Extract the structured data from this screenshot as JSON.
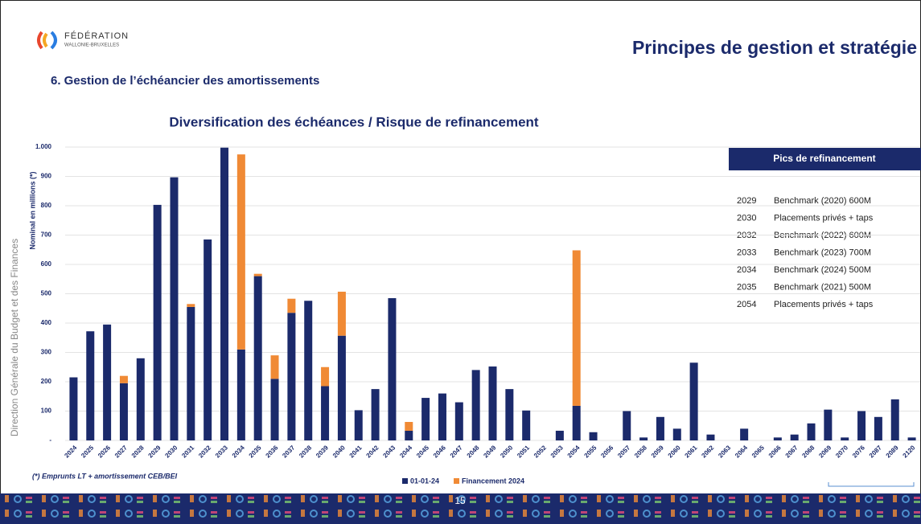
{
  "header": {
    "logo_line1": "FÉDÉRATION",
    "logo_line2": "WALLONIE-BRUXELLES",
    "title": "Principes de gestion et stratégie",
    "subtitle": "6. Gestion de l’échéancier des amortissements"
  },
  "sidebar": "Direction Générale du Budget et des Finances",
  "chart_data": {
    "type": "stacked_bar",
    "title": "Diversification des échéances / Risque de refinancement",
    "y_label": "Nominal en millions (*)",
    "categories": [
      "2024",
      "2025",
      "2026",
      "2027",
      "2028",
      "2029",
      "2030",
      "2031",
      "2032",
      "2033",
      "2034",
      "2035",
      "2036",
      "2037",
      "2038",
      "2039",
      "2040",
      "2041",
      "2042",
      "2043",
      "2044",
      "2045",
      "2046",
      "2047",
      "2048",
      "2049",
      "2050",
      "2051",
      "2052",
      "2053",
      "2054",
      "2055",
      "2056",
      "2057",
      "2058",
      "2059",
      "2060",
      "2061",
      "2062",
      "2063",
      "2064",
      "2065",
      "2066",
      "2067",
      "2068",
      "2069",
      "2070",
      "2076",
      "2087",
      "2089",
      "2120"
    ],
    "series": [
      {
        "name": "01-01-24",
        "color": "#1b2a6b",
        "values": [
          215,
          372,
          395,
          195,
          280,
          803,
          897,
          455,
          685,
          998,
          310,
          560,
          210,
          435,
          476,
          185,
          357,
          103,
          175,
          485,
          33,
          145,
          160,
          130,
          240,
          252,
          175,
          102,
          0,
          33,
          118,
          28,
          0,
          100,
          10,
          80,
          40,
          265,
          20,
          0,
          40,
          0,
          10,
          20,
          58,
          105,
          10,
          100,
          80,
          140,
          10
        ]
      },
      {
        "name": "Financement 2024",
        "color": "#f08a35",
        "values": [
          0,
          0,
          0,
          25,
          0,
          0,
          0,
          10,
          0,
          0,
          665,
          8,
          80,
          48,
          0,
          65,
          150,
          0,
          0,
          0,
          30,
          0,
          0,
          0,
          0,
          0,
          0,
          0,
          0,
          0,
          530,
          0,
          0,
          0,
          0,
          0,
          0,
          0,
          0,
          0,
          0,
          0,
          0,
          0,
          0,
          0,
          0,
          0,
          0,
          0,
          0
        ]
      }
    ],
    "ylim": [
      0,
      1000
    ],
    "yticks": [
      {
        "value": 0,
        "label": "-"
      },
      100,
      200,
      300,
      400,
      500,
      600,
      700,
      800,
      900,
      {
        "value": 1000,
        "label": "1.000"
      }
    ],
    "grid": true,
    "footnote": "(*) Emprunts LT +  amortissement CEB/BEI"
  },
  "table": {
    "title": "Pics de refinancement",
    "rows": [
      [
        "2029",
        "Benchmark (2020) 600M"
      ],
      [
        "2030",
        "Placements privés + taps"
      ],
      [
        "2032",
        "Benchmark (2022) 600M"
      ],
      [
        "2033",
        "Benchmark (2023) 700M"
      ],
      [
        "2034",
        "Benchmark (2024) 500M"
      ],
      [
        "2035",
        "Benchmark (2021) 500M"
      ],
      [
        "2054",
        "Placements privés + taps"
      ]
    ]
  },
  "footer": {
    "page": "15"
  }
}
